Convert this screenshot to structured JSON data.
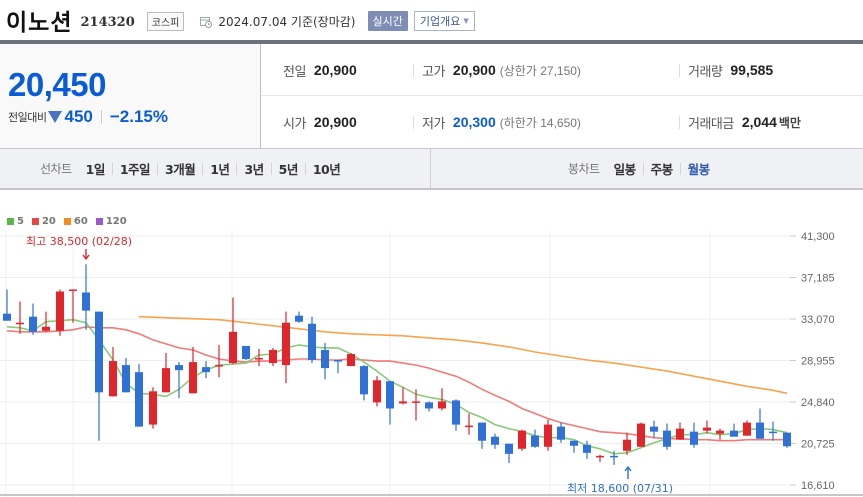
{
  "header": {
    "stock_name": "이노션",
    "stock_code": "214320",
    "market": "코스피",
    "date": "2024.07.04",
    "basis": "기준(장마감)",
    "realtime_label": "실시간",
    "company_overview_label": "기업개요"
  },
  "price": {
    "current": "20,450",
    "change_label": "전일대비",
    "change_direction": "down",
    "change_amount": "450",
    "change_percent": "−2.15%"
  },
  "info": {
    "prev_close": {
      "label": "전일",
      "value": "20,900"
    },
    "open": {
      "label": "시가",
      "value": "20,900"
    },
    "high": {
      "label": "고가",
      "value": "20,900",
      "limit_label": "(상한가",
      "limit_value": "27,150)"
    },
    "low": {
      "label": "저가",
      "value": "20,300",
      "limit_label": "(하한가",
      "limit_value": "14,650)"
    },
    "volume": {
      "label": "거래량",
      "value": "99,585"
    },
    "trade_value": {
      "label": "거래대금",
      "value": "2,044",
      "unit": "백만"
    }
  },
  "tabs": {
    "line_chart_title": "선차트",
    "line_chart_periods": [
      "1일",
      "1주일",
      "3개월",
      "1년",
      "3년",
      "5년",
      "10년"
    ],
    "candle_chart_title": "봉차트",
    "candle_chart_periods": [
      "일봉",
      "주봉",
      "월봉"
    ],
    "active_candle_period": "월봉"
  },
  "colors": {
    "up": "#e0262d",
    "down": "#2f71d4",
    "ma5": "#7cc46a",
    "ma20": "#ef6b6b",
    "ma60": "#f59a3a",
    "ma120": "#9b59c9",
    "accent_blue": "#0a5bd6"
  },
  "chart_data": {
    "type": "candlestick",
    "legend": [
      {
        "name": "5",
        "color": "#58b947"
      },
      {
        "name": "20",
        "color": "#e84545"
      },
      {
        "name": "60",
        "color": "#f58a1f"
      },
      {
        "name": "120",
        "color": "#9b59c9"
      }
    ],
    "y_ticks": [
      "41,300",
      "37,185",
      "33,070",
      "28,955",
      "24,840",
      "20,725",
      "16,610"
    ],
    "ylim": [
      16610,
      41300
    ],
    "annotations": {
      "high": {
        "label": "최고 38,500 (02/28)",
        "value": 38500
      },
      "low": {
        "label": "최저 18,600 (07/31)",
        "value": 18600
      }
    },
    "candles": [
      [
        7,
        33600,
        32900,
        36000,
        32900
      ],
      [
        20,
        32700,
        32700,
        34800,
        31600
      ],
      [
        33,
        33300,
        31800,
        34600,
        31500
      ],
      [
        46,
        31900,
        32300,
        33800,
        31800
      ],
      [
        60,
        31900,
        35800,
        36000,
        31400
      ],
      [
        73,
        36000,
        36000,
        35900,
        32700
      ],
      [
        86,
        35700,
        33900,
        38500,
        32000
      ],
      [
        99,
        33800,
        25800,
        33800,
        21000
      ],
      [
        113,
        25400,
        28900,
        30300,
        25400
      ],
      [
        126,
        28500,
        25800,
        29200,
        25800
      ],
      [
        139,
        27800,
        22400,
        28600,
        22400
      ],
      [
        153,
        22600,
        25900,
        26300,
        22200
      ],
      [
        166,
        25800,
        28200,
        29700,
        26700
      ],
      [
        179,
        28500,
        28000,
        28800,
        25200
      ],
      [
        193,
        25700,
        28800,
        30300,
        26200
      ],
      [
        206,
        28300,
        27800,
        28900,
        27200
      ],
      [
        219,
        28400,
        28500,
        30500,
        27300
      ],
      [
        233,
        28700,
        31800,
        35200,
        28600
      ],
      [
        246,
        30400,
        29100,
        30400,
        29000
      ],
      [
        259,
        29200,
        29200,
        30100,
        28400
      ],
      [
        273,
        28700,
        30000,
        30200,
        28400
      ],
      [
        286,
        28500,
        32700,
        33800,
        26700
      ],
      [
        299,
        33400,
        32800,
        33800,
        32700
      ],
      [
        312,
        32600,
        29000,
        33300,
        28700
      ],
      [
        325,
        30000,
        28200,
        30700,
        27100
      ],
      [
        338,
        29000,
        28900,
        28500,
        27700
      ],
      [
        351,
        28400,
        29600,
        29700,
        28400
      ],
      [
        364,
        28400,
        25600,
        28500,
        25000
      ],
      [
        377,
        24800,
        27000,
        27400,
        24400
      ],
      [
        390,
        26900,
        24200,
        26900,
        22600
      ],
      [
        403,
        24700,
        24900,
        26300,
        24600
      ],
      [
        416,
        24900,
        24900,
        26100,
        23000
      ],
      [
        429,
        24800,
        24200,
        24900,
        23900
      ],
      [
        442,
        24200,
        24900,
        26200,
        24000
      ],
      [
        456,
        25000,
        22600,
        25100,
        22000
      ],
      [
        469,
        22500,
        22500,
        23700,
        21600
      ],
      [
        482,
        22800,
        21000,
        22800,
        20200
      ],
      [
        495,
        21400,
        20600,
        21700,
        20200
      ],
      [
        509,
        20700,
        19700,
        20700,
        18800
      ],
      [
        522,
        20200,
        22000,
        22100,
        20000
      ],
      [
        535,
        21500,
        20400,
        22100,
        20300
      ],
      [
        548,
        20400,
        22600,
        23100,
        20000
      ],
      [
        561,
        22400,
        21100,
        22800,
        20800
      ],
      [
        574,
        21000,
        20500,
        21000,
        19800
      ],
      [
        587,
        20600,
        19800,
        21000,
        19200
      ],
      [
        600,
        19400,
        19500,
        19600,
        18900
      ],
      [
        614,
        19500,
        19400,
        20000,
        18600
      ],
      [
        627,
        20000,
        21100,
        21800,
        19600
      ],
      [
        641,
        20400,
        22700,
        22800,
        20400
      ],
      [
        654,
        22400,
        21900,
        23000,
        21300
      ],
      [
        667,
        22000,
        20400,
        22700,
        20100
      ],
      [
        680,
        21100,
        22200,
        22800,
        21700
      ],
      [
        694,
        21900,
        20600,
        22800,
        20300
      ],
      [
        707,
        22000,
        22300,
        23000,
        21700
      ],
      [
        720,
        21700,
        22000,
        22200,
        21100
      ],
      [
        734,
        22000,
        21400,
        22700,
        21400
      ],
      [
        747,
        21500,
        22800,
        23000,
        21500
      ],
      [
        760,
        22800,
        21200,
        24200,
        21200
      ],
      [
        773,
        21900,
        21800,
        22900,
        21000
      ],
      [
        787,
        21800,
        20450,
        21800,
        20300
      ]
    ],
    "ma5": [
      [
        7,
        32300
      ],
      [
        20,
        32200
      ],
      [
        33,
        31900
      ],
      [
        46,
        32800
      ],
      [
        60,
        32900
      ],
      [
        73,
        33000
      ],
      [
        86,
        32700
      ],
      [
        99,
        31000
      ],
      [
        113,
        29000
      ],
      [
        126,
        26700
      ],
      [
        139,
        25700
      ],
      [
        153,
        25600
      ],
      [
        166,
        25400
      ],
      [
        179,
        26100
      ],
      [
        193,
        27300
      ],
      [
        206,
        28000
      ],
      [
        219,
        28500
      ],
      [
        233,
        28600
      ],
      [
        246,
        28700
      ],
      [
        259,
        29500
      ],
      [
        273,
        29600
      ],
      [
        286,
        30200
      ],
      [
        299,
        30500
      ],
      [
        312,
        30300
      ],
      [
        325,
        30200
      ],
      [
        338,
        30200
      ],
      [
        351,
        29600
      ],
      [
        364,
        28800
      ],
      [
        377,
        27900
      ],
      [
        390,
        26900
      ],
      [
        403,
        26300
      ],
      [
        416,
        25600
      ],
      [
        429,
        25300
      ],
      [
        442,
        25100
      ],
      [
        456,
        24600
      ],
      [
        469,
        23800
      ],
      [
        482,
        23300
      ],
      [
        495,
        22600
      ],
      [
        509,
        22200
      ],
      [
        522,
        21900
      ],
      [
        535,
        21500
      ],
      [
        548,
        21300
      ],
      [
        561,
        21300
      ],
      [
        574,
        21100
      ],
      [
        587,
        20500
      ],
      [
        600,
        20200
      ],
      [
        614,
        19700
      ],
      [
        627,
        19800
      ],
      [
        641,
        20300
      ],
      [
        654,
        20800
      ],
      [
        667,
        21200
      ],
      [
        680,
        21600
      ],
      [
        694,
        21600
      ],
      [
        707,
        21800
      ],
      [
        720,
        21600
      ],
      [
        734,
        21700
      ],
      [
        747,
        22100
      ],
      [
        760,
        22200
      ],
      [
        773,
        22100
      ],
      [
        787,
        21800
      ]
    ],
    "ma20": [
      [
        7,
        31900
      ],
      [
        20,
        31800
      ],
      [
        33,
        31800
      ],
      [
        46,
        31800
      ],
      [
        60,
        31900
      ],
      [
        73,
        32000
      ],
      [
        86,
        32300
      ],
      [
        99,
        32200
      ],
      [
        113,
        32200
      ],
      [
        126,
        32000
      ],
      [
        139,
        31600
      ],
      [
        153,
        31000
      ],
      [
        166,
        30600
      ],
      [
        179,
        30200
      ],
      [
        193,
        30000
      ],
      [
        206,
        29500
      ],
      [
        219,
        29100
      ],
      [
        233,
        28900
      ],
      [
        246,
        28800
      ],
      [
        259,
        28900
      ],
      [
        273,
        28900
      ],
      [
        286,
        29000
      ],
      [
        299,
        29100
      ],
      [
        312,
        29100
      ],
      [
        325,
        29000
      ],
      [
        338,
        29000
      ],
      [
        351,
        29100
      ],
      [
        364,
        29000
      ],
      [
        377,
        28900
      ],
      [
        390,
        28900
      ],
      [
        403,
        28700
      ],
      [
        416,
        28500
      ],
      [
        429,
        28200
      ],
      [
        442,
        27800
      ],
      [
        456,
        27400
      ],
      [
        469,
        26800
      ],
      [
        482,
        26100
      ],
      [
        495,
        25500
      ],
      [
        509,
        24900
      ],
      [
        522,
        24200
      ],
      [
        535,
        23700
      ],
      [
        548,
        23200
      ],
      [
        561,
        22800
      ],
      [
        574,
        22500
      ],
      [
        587,
        22200
      ],
      [
        600,
        21900
      ],
      [
        614,
        21800
      ],
      [
        627,
        21700
      ],
      [
        641,
        21500
      ],
      [
        654,
        21300
      ],
      [
        667,
        21200
      ],
      [
        680,
        21200
      ],
      [
        694,
        21100
      ],
      [
        707,
        21100
      ],
      [
        720,
        21000
      ],
      [
        734,
        21000
      ],
      [
        747,
        21100
      ],
      [
        760,
        21100
      ],
      [
        773,
        21100
      ],
      [
        787,
        21100
      ]
    ],
    "ma60": [
      [
        139,
        33300
      ],
      [
        166,
        33200
      ],
      [
        193,
        33100
      ],
      [
        219,
        33000
      ],
      [
        246,
        32700
      ],
      [
        273,
        32400
      ],
      [
        299,
        32100
      ],
      [
        325,
        31800
      ],
      [
        351,
        31600
      ],
      [
        377,
        31500
      ],
      [
        403,
        31400
      ],
      [
        429,
        31200
      ],
      [
        456,
        31000
      ],
      [
        482,
        30700
      ],
      [
        509,
        30300
      ],
      [
        535,
        29800
      ],
      [
        561,
        29400
      ],
      [
        587,
        29000
      ],
      [
        614,
        28700
      ],
      [
        641,
        28300
      ],
      [
        667,
        27900
      ],
      [
        694,
        27400
      ],
      [
        720,
        26900
      ],
      [
        747,
        26400
      ],
      [
        773,
        26000
      ],
      [
        787,
        25700
      ]
    ]
  }
}
